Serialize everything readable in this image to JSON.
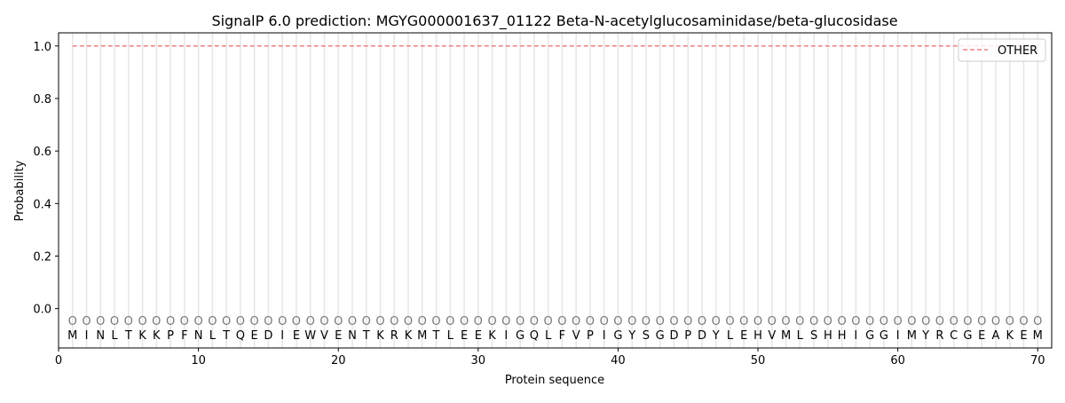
{
  "chart_data": {
    "type": "line",
    "title": "SignalP 6.0 prediction: MGYG000001637_01122 Beta-N-acetylglucosaminidase/beta-glucosidase",
    "xlabel": "Protein sequence",
    "ylabel": "Probability",
    "xlim": [
      0,
      71
    ],
    "ylim": [
      -0.15,
      1.05
    ],
    "xticks": [
      0,
      10,
      20,
      30,
      40,
      50,
      60,
      70
    ],
    "yticks": [
      0.0,
      0.2,
      0.4,
      0.6,
      0.8,
      1.0
    ],
    "ytick_labels": [
      "0.0",
      "0.2",
      "0.4",
      "0.6",
      "0.8",
      "1.0"
    ],
    "legend_position": "top-right",
    "grid": "vertical lines at each residue",
    "sequence": [
      "M",
      "I",
      "N",
      "L",
      "T",
      "K",
      "K",
      "P",
      "F",
      "N",
      "L",
      "T",
      "Q",
      "E",
      "D",
      "I",
      "E",
      "W",
      "V",
      "E",
      "N",
      "T",
      "K",
      "R",
      "K",
      "M",
      "T",
      "L",
      "E",
      "E",
      "K",
      "I",
      "G",
      "Q",
      "L",
      "F",
      "V",
      "P",
      "I",
      "G",
      "Y",
      "S",
      "G",
      "D",
      "P",
      "D",
      "Y",
      "L",
      "E",
      "H",
      "V",
      "M",
      "L",
      "S",
      "H",
      "H",
      "I",
      "G",
      "G",
      "I",
      "M",
      "Y",
      "R",
      "C",
      "G",
      "E",
      "A",
      "K",
      "E",
      "M"
    ],
    "predicted_labels": "OOOOOOOOOOOOOOOOOOOOOOOOOOOOOOOOOOOOOOOOOOOOOOOOOOOOOOOOOOOOOOOOOOOOOO",
    "series": [
      {
        "name": "OTHER",
        "color": "#f08080",
        "style": "dashed",
        "x_range": [
          1,
          70
        ],
        "value": 1.0
      }
    ]
  }
}
